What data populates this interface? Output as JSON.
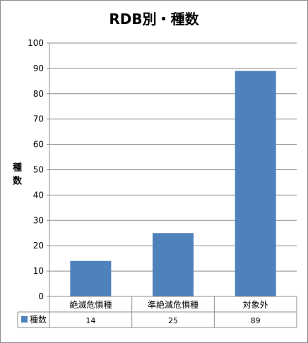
{
  "chart_data": {
    "type": "bar",
    "title": "RDB別・種数",
    "ylabel": "種数",
    "xlabel": "",
    "ylim": [
      0,
      100
    ],
    "yticks": [
      0,
      10,
      20,
      30,
      40,
      50,
      60,
      70,
      80,
      90,
      100
    ],
    "grid": true,
    "categories": [
      "絶滅危惧種",
      "準絶滅危惧種",
      "対象外"
    ],
    "series": [
      {
        "name": "種数",
        "values": [
          14,
          25,
          89
        ],
        "color": "#4f81bd"
      }
    ],
    "data_table": true
  }
}
